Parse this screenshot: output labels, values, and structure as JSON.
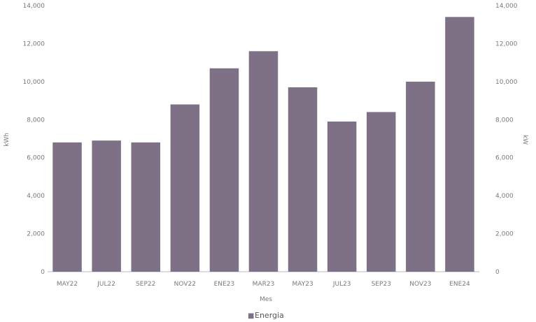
{
  "chart_data": {
    "type": "bar",
    "title": "",
    "xlabel": "Mes",
    "ylabel": "kWh",
    "y2label": "kW",
    "categories": [
      "MAY22",
      "JUL22",
      "SEP22",
      "NOV22",
      "ENE23",
      "MAR23",
      "MAY23",
      "JUL23",
      "SEP23",
      "NOV23",
      "ENE24"
    ],
    "series": [
      {
        "name": "Energia",
        "values": [
          6800,
          6900,
          6800,
          8800,
          10700,
          11600,
          9700,
          7900,
          8400,
          10000,
          13400
        ]
      }
    ],
    "ylim": [
      0,
      14000
    ],
    "y2lim": [
      0,
      14000
    ],
    "y_ticks": [
      "0",
      "2,000",
      "4,000",
      "6,000",
      "8,000",
      "10,000",
      "12,000",
      "14,000"
    ],
    "y2_ticks": [
      "0",
      "2,000",
      "4,000",
      "6,000",
      "8,000",
      "10,000",
      "12,000",
      "14,000"
    ],
    "legend_position": "bottom",
    "grid": false,
    "bar_color": "#7e7186",
    "legend_marker": "■"
  }
}
